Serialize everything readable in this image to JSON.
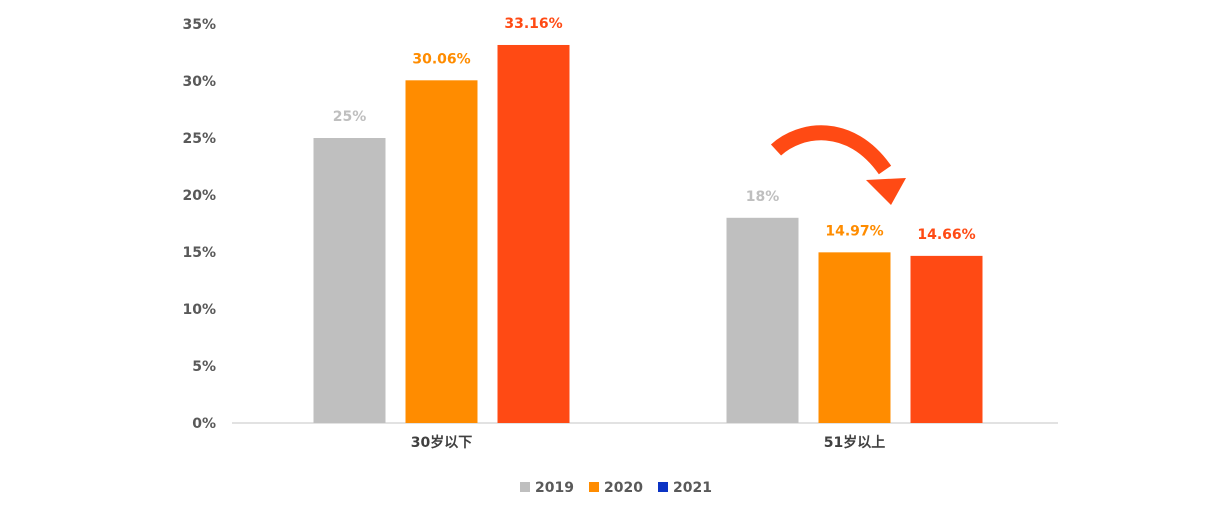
{
  "chart_data": {
    "type": "bar",
    "title": "",
    "xlabel": "",
    "ylabel": "",
    "categories": [
      "30岁以下",
      "51岁以上"
    ],
    "series": [
      {
        "name": "2019",
        "values": [
          25,
          18
        ],
        "labels": [
          "25%",
          "18%"
        ],
        "color": "#bfbfbf",
        "label_color": "#bfbfbf"
      },
      {
        "name": "2020",
        "values": [
          30.06,
          14.97
        ],
        "labels": [
          "30.06%",
          "14.97%"
        ],
        "color": "#ff8c00",
        "label_color": "#ff8c00"
      },
      {
        "name": "2021",
        "values": [
          33.16,
          14.66
        ],
        "labels": [
          "33.16%",
          "14.66%"
        ],
        "color": "#ff4a14",
        "label_color": "#ff4a14"
      }
    ],
    "legend_colors": [
      "#bfbfbf",
      "#ff8c00",
      "#0b33c4"
    ],
    "ylim": [
      0,
      35
    ],
    "yticks": [
      0,
      5,
      10,
      15,
      20,
      25,
      30,
      35
    ],
    "ytick_labels": [
      "0%",
      "5%",
      "10%",
      "15%",
      "20%",
      "25%",
      "30%",
      "35%"
    ],
    "grid": false,
    "legend_position": "bottom",
    "annotation": {
      "type": "curved-arrow-icon",
      "color": "#ff4a14"
    }
  }
}
